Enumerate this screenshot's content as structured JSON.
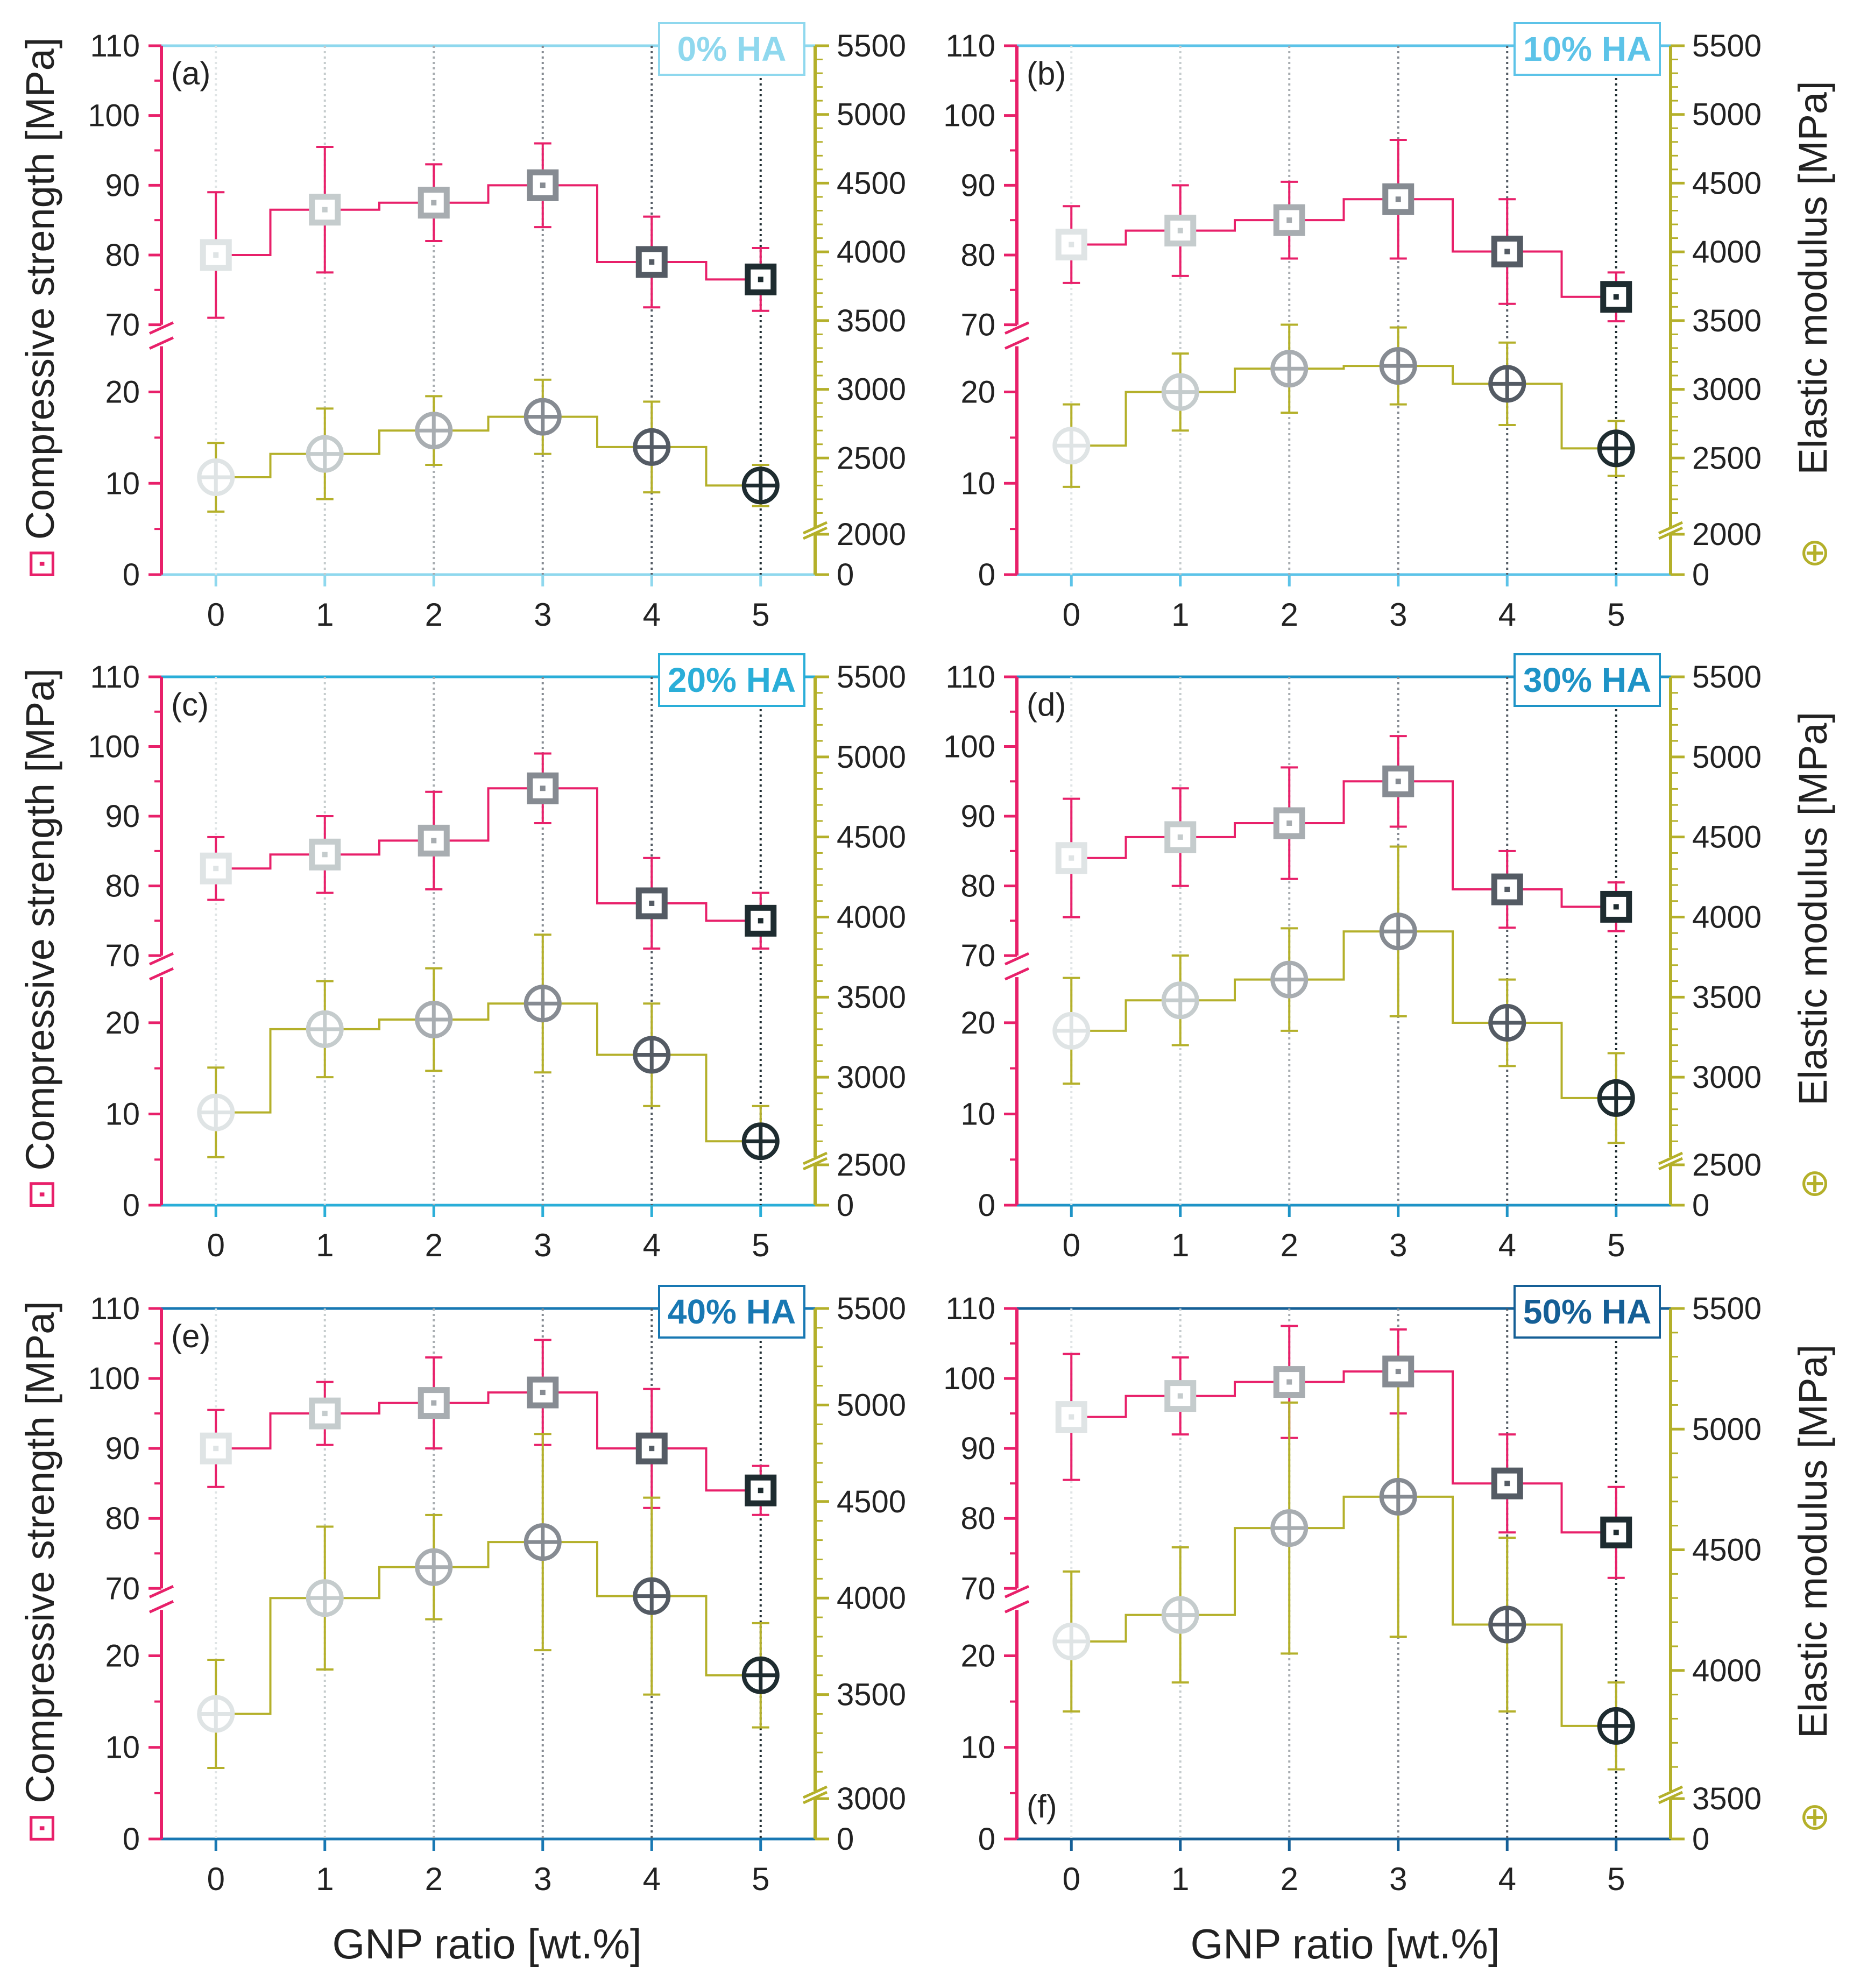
{
  "figure": {
    "x_title": "GNP ratio [wt.%]",
    "y_left_title": "Compressive strength [MPa]",
    "y_right_title": "Elastic modulus [MPa]",
    "left_legend_symbol": "⊡",
    "right_legend_symbol": "⊕"
  },
  "colors": {
    "strength": "#e8206a",
    "modulus": "#b4b02a",
    "marker_shades": [
      "#dfe4e5",
      "#c5cccd",
      "#a8adb1",
      "#868b92",
      "#545b64",
      "#1e2c30"
    ],
    "panel_frame": [
      "#8fd8ee",
      "#5cc3e8",
      "#2aaed8",
      "#1e93c6",
      "#1878b3",
      "#155f96"
    ]
  },
  "chart_data": [
    {
      "type": "line",
      "panel": "(a)",
      "ha_label": "0% HA",
      "categories": [
        0,
        1,
        2,
        3,
        4,
        5
      ],
      "xticks": [
        "0",
        "1",
        "2",
        "3",
        "4",
        "5"
      ],
      "strength": {
        "values": [
          80,
          86.5,
          87.5,
          90,
          79,
          76.5
        ],
        "err": [
          9,
          9,
          5.5,
          6,
          6.5,
          4.5
        ],
        "yticks": [
          "0",
          "10",
          "20",
          "70",
          "80",
          "90",
          "100",
          "110"
        ]
      },
      "modulus": {
        "values": [
          2360,
          2530,
          2700,
          2800,
          2580,
          2300
        ],
        "err": [
          250,
          330,
          250,
          270,
          330,
          150
        ],
        "low_range": [
          0,
          2000
        ],
        "high_range": [
          2000,
          5500
        ],
        "yticks": [
          "0",
          "2000",
          "2500",
          "3000",
          "3500",
          "4000",
          "4500",
          "5000",
          "5500"
        ]
      }
    },
    {
      "type": "line",
      "panel": "(b)",
      "ha_label": "10% HA",
      "categories": [
        0,
        1,
        2,
        3,
        4,
        5
      ],
      "xticks": [
        "0",
        "1",
        "2",
        "3",
        "4",
        "5"
      ],
      "strength": {
        "values": [
          81.5,
          83.5,
          85,
          88,
          80.5,
          74
        ],
        "err": [
          5.5,
          6.5,
          5.5,
          8.5,
          7.5,
          3.5
        ],
        "yticks": [
          "0",
          "10",
          "20",
          "70",
          "80",
          "90",
          "100",
          "110"
        ]
      },
      "modulus": {
        "values": [
          2590,
          2980,
          3150,
          3170,
          3040,
          2570
        ],
        "err": [
          300,
          280,
          320,
          280,
          300,
          200
        ],
        "low_range": [
          0,
          2000
        ],
        "high_range": [
          2000,
          5500
        ],
        "yticks": [
          "0",
          "2000",
          "2500",
          "3000",
          "3500",
          "4000",
          "4500",
          "5000",
          "5500"
        ]
      }
    },
    {
      "type": "line",
      "panel": "(c)",
      "ha_label": "20% HA",
      "categories": [
        0,
        1,
        2,
        3,
        4,
        5
      ],
      "xticks": [
        "0",
        "1",
        "2",
        "3",
        "4",
        "5"
      ],
      "strength": {
        "values": [
          82.5,
          84.5,
          86.5,
          94,
          77.5,
          75
        ],
        "err": [
          4.5,
          5.5,
          7,
          5,
          6.5,
          4
        ],
        "yticks": [
          "0",
          "10",
          "20",
          "70",
          "80",
          "90",
          "100",
          "110"
        ]
      },
      "modulus": {
        "values": [
          2780,
          3300,
          3360,
          3460,
          3140,
          2600
        ],
        "err": [
          280,
          300,
          320,
          430,
          320,
          220
        ],
        "low_range": [
          0,
          2500
        ],
        "high_range": [
          2500,
          5500
        ],
        "yticks": [
          "0",
          "2500",
          "3000",
          "3500",
          "4000",
          "4500",
          "5000",
          "5500"
        ]
      }
    },
    {
      "type": "line",
      "panel": "(d)",
      "ha_label": "30% HA",
      "categories": [
        0,
        1,
        2,
        3,
        4,
        5
      ],
      "xticks": [
        "0",
        "1",
        "2",
        "3",
        "4",
        "5"
      ],
      "strength": {
        "values": [
          84,
          87,
          89,
          95,
          79.5,
          77
        ],
        "err": [
          8.5,
          7,
          8,
          6.5,
          5.5,
          3.5
        ],
        "yticks": [
          "0",
          "10",
          "20",
          "70",
          "80",
          "90",
          "100",
          "110"
        ]
      },
      "modulus": {
        "values": [
          3290,
          3480,
          3610,
          3910,
          3340,
          2870
        ],
        "err": [
          330,
          280,
          320,
          530,
          270,
          280
        ],
        "low_range": [
          0,
          2500
        ],
        "high_range": [
          2500,
          5500
        ],
        "yticks": [
          "0",
          "2500",
          "3000",
          "3500",
          "4000",
          "4500",
          "5000",
          "5500"
        ]
      }
    },
    {
      "type": "line",
      "panel": "(e)",
      "ha_label": "40% HA",
      "categories": [
        0,
        1,
        2,
        3,
        4,
        5
      ],
      "xticks": [
        "0",
        "1",
        "2",
        "3",
        "4",
        "5"
      ],
      "strength": {
        "values": [
          90,
          95,
          96.5,
          98,
          90,
          84
        ],
        "err": [
          5.5,
          4.5,
          6.5,
          7.5,
          8.5,
          3.5
        ],
        "yticks": [
          "0",
          "10",
          "20",
          "70",
          "80",
          "90",
          "100",
          "110"
        ]
      },
      "modulus": {
        "values": [
          3400,
          4000,
          4160,
          4290,
          4010,
          3600
        ],
        "err": [
          280,
          370,
          270,
          560,
          510,
          270
        ],
        "low_range": [
          0,
          3000
        ],
        "high_range": [
          3000,
          5500
        ],
        "yticks": [
          "0",
          "3000",
          "3500",
          "4000",
          "4500",
          "5000",
          "5500"
        ]
      }
    },
    {
      "type": "line",
      "panel": "(f)",
      "ha_label": "50% HA",
      "categories": [
        0,
        1,
        2,
        3,
        4,
        5
      ],
      "xticks": [
        "0",
        "1",
        "2",
        "3",
        "4",
        "5"
      ],
      "strength": {
        "values": [
          94.5,
          97.5,
          99.5,
          101,
          85,
          78
        ],
        "err": [
          9,
          5.5,
          8,
          6,
          7,
          6.5
        ],
        "yticks": [
          "0",
          "10",
          "20",
          "70",
          "80",
          "90",
          "100",
          "110"
        ]
      },
      "modulus": {
        "values": [
          4120,
          4230,
          4590,
          4720,
          4190,
          3770
        ],
        "err": [
          290,
          280,
          520,
          580,
          360,
          180
        ],
        "low_range": [
          0,
          3500
        ],
        "high_range": [
          3500,
          5500
        ],
        "yticks": [
          "0",
          "3500",
          "4000",
          "4500",
          "5000",
          "5500"
        ]
      }
    }
  ]
}
